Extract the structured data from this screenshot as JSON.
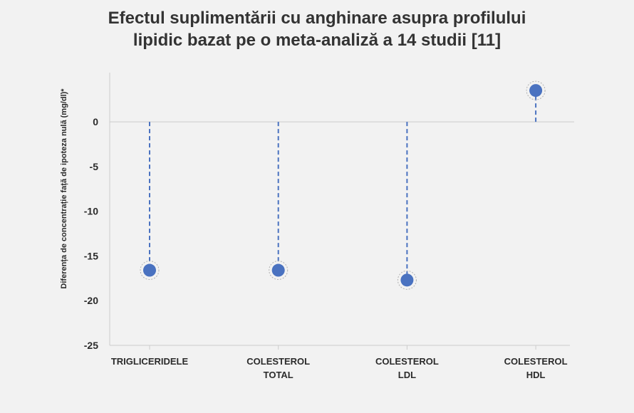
{
  "chart_data": {
    "type": "scatter",
    "title_lines": [
      "Efectul suplimentării cu anghinare asupra profilului",
      "lipidic bazat pe o meta-analiză a 14 studii [11]"
    ],
    "ylabel": "Diferența de concentrație față de ipoteza nulă (mg/dl)*",
    "xlabel": "",
    "categories": [
      [
        "TRIGLICERIDELE"
      ],
      [
        "COLESTEROL",
        "TOTAL"
      ],
      [
        "COLESTEROL",
        "LDL"
      ],
      [
        "COLESTEROL",
        "HDL"
      ]
    ],
    "values": [
      -16.6,
      -16.6,
      -17.7,
      3.5
    ],
    "yticks": [
      0,
      -5,
      -10,
      -15,
      -20,
      -25
    ],
    "ylim": [
      -25,
      5.5
    ],
    "baseline": 0,
    "grid": false,
    "legend": "none",
    "colors": {
      "point": "#4a72c0",
      "stem": "#4a72c0",
      "axis": "#cccccc",
      "halo": "#b0b0b0"
    }
  }
}
